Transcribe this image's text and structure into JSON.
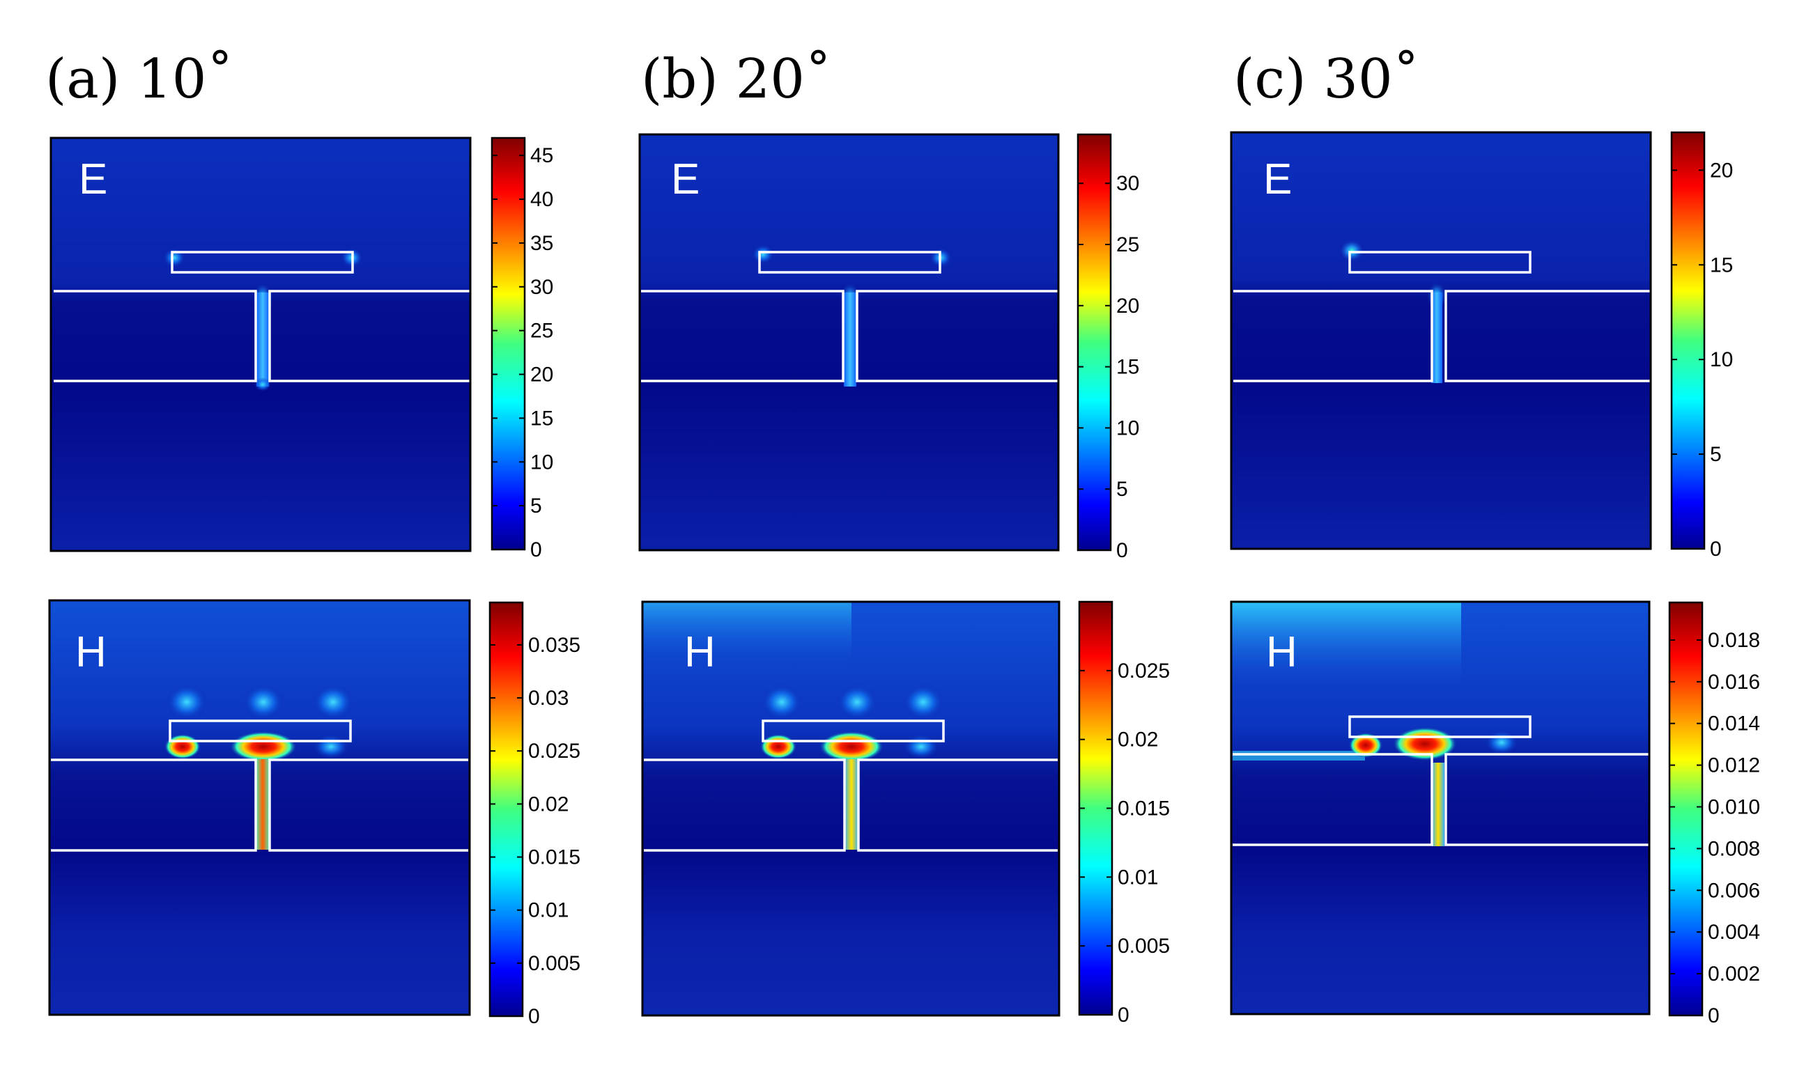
{
  "figure": {
    "panels": [
      {
        "id": "a",
        "title": "(a)  10˚"
      },
      {
        "id": "b",
        "title": "(b)  20˚"
      },
      {
        "id": "c",
        "title": "(c)  30˚"
      }
    ]
  },
  "chart_data": [
    {
      "type": "heatmap",
      "panel": "a",
      "field_label": "E",
      "title": "(a) 10˚",
      "colorbar": {
        "ticks": [
          "0",
          "5",
          "10",
          "15",
          "20",
          "25",
          "30",
          "35",
          "40",
          "45"
        ],
        "range": [
          0,
          47
        ]
      }
    },
    {
      "type": "heatmap",
      "panel": "b",
      "field_label": "E",
      "title": "(b) 20˚",
      "colorbar": {
        "ticks": [
          "0",
          "5",
          "10",
          "15",
          "20",
          "25",
          "30"
        ],
        "range": [
          0,
          34
        ]
      }
    },
    {
      "type": "heatmap",
      "panel": "c",
      "field_label": "E",
      "title": "(c) 30˚",
      "colorbar": {
        "ticks": [
          "0",
          "5",
          "10",
          "15",
          "20"
        ],
        "range": [
          0,
          22
        ]
      }
    },
    {
      "type": "heatmap",
      "panel": "a",
      "field_label": "H",
      "colorbar": {
        "ticks": [
          "0",
          "0.005",
          "0.01",
          "0.015",
          "0.02",
          "0.025",
          "0.03",
          "0.035"
        ],
        "range": [
          0,
          0.039
        ]
      }
    },
    {
      "type": "heatmap",
      "panel": "b",
      "field_label": "H",
      "colorbar": {
        "ticks": [
          "0",
          "0.005",
          "0.01",
          "0.015",
          "0.02",
          "0.025"
        ],
        "range": [
          0,
          0.03
        ]
      }
    },
    {
      "type": "heatmap",
      "panel": "c",
      "field_label": "H",
      "colorbar": {
        "ticks": [
          "0",
          "0.002",
          "0.004",
          "0.006",
          "0.008",
          "0.010",
          "0.012",
          "0.014",
          "0.016",
          "0.018"
        ],
        "range": [
          0,
          0.0198
        ]
      }
    }
  ],
  "colors": {
    "background_field": "#0a1fa8",
    "deep_field": "#00008f",
    "structure_outline": "#ffffff"
  }
}
